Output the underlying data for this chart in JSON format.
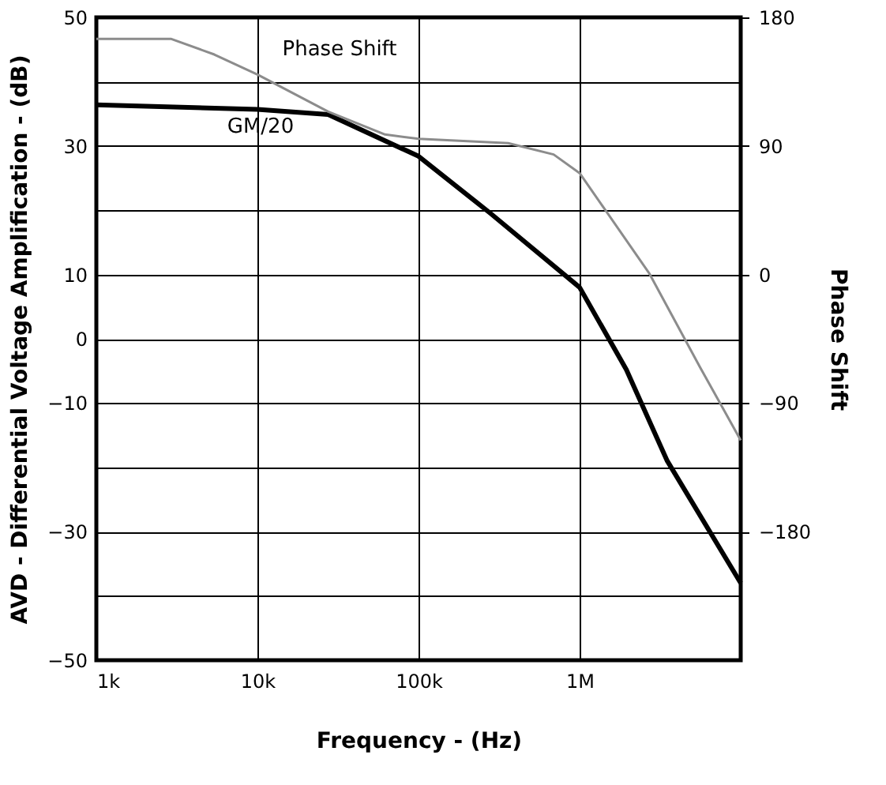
{
  "chart_data": {
    "type": "line",
    "xlabel": "Frequency  - (Hz)",
    "ylabel": "AVD - Differential Voltage Amplification - (dB)",
    "y2label": "Phase Shift",
    "log": "x",
    "grid": true,
    "legend": false,
    "line_style": "solid",
    "marker": "none",
    "xlim": [
      1000,
      10000000
    ],
    "xticks": [
      {
        "value": 1000,
        "label": "1k"
      },
      {
        "value": 10000,
        "label": "10k"
      },
      {
        "value": 100000,
        "label": "100k"
      },
      {
        "value": 1000000,
        "label": "1M"
      }
    ],
    "ylim": [
      -50,
      50
    ],
    "yticks": [
      50,
      {
        "value": 40,
        "label": null
      },
      30,
      {
        "value": 20,
        "label": null
      },
      10,
      0,
      -10,
      {
        "value": -20,
        "label": null
      },
      -30,
      {
        "value": -40,
        "label": null
      },
      -50
    ],
    "y2lim": [
      -270,
      180
    ],
    "y2ticks": [
      180,
      90,
      0,
      -90,
      -180
    ],
    "series": [
      {
        "name": "GM/20",
        "color": "#000000",
        "axis": "y",
        "x": [
          1000,
          10000,
          27500,
          100000,
          280000,
          1000000,
          1950000,
          3500000,
          10000000
        ],
        "values": [
          36.4,
          35.7,
          34.9,
          28.4,
          19.5,
          8,
          -4.8,
          -19,
          -38
        ]
      },
      {
        "name": "Phase Shift",
        "color": "#8c8c8c",
        "axis": "y2",
        "x": [
          1000,
          2900,
          5400,
          10000,
          27500,
          62000,
          100000,
          360000,
          690000,
          1000000,
          2700000,
          5600000,
          10000000
        ],
        "values": [
          165,
          165,
          154,
          140,
          114,
          98,
          95,
          92,
          84,
          71,
          1,
          -65,
          -116
        ]
      }
    ]
  }
}
